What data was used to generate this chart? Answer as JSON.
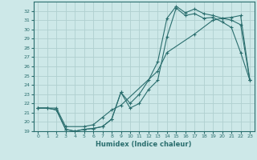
{
  "xlabel": "Humidex (Indice chaleur)",
  "xlim": [
    -0.5,
    23.5
  ],
  "ylim": [
    19,
    33
  ],
  "yticks": [
    19,
    20,
    21,
    22,
    23,
    24,
    25,
    26,
    27,
    28,
    29,
    30,
    31,
    32
  ],
  "xticks": [
    0,
    1,
    2,
    3,
    4,
    5,
    6,
    7,
    8,
    9,
    10,
    11,
    12,
    13,
    14,
    15,
    16,
    17,
    18,
    19,
    20,
    21,
    22,
    23
  ],
  "background_color": "#cde8e8",
  "grid_color": "#b0d0d0",
  "line_color": "#2a6e6e",
  "line1_x": [
    0,
    1,
    2,
    3,
    4,
    5,
    6,
    7,
    8,
    9,
    10,
    11,
    12,
    13,
    14,
    15,
    16,
    17,
    18,
    19,
    20,
    21,
    22,
    23
  ],
  "line1_y": [
    21.5,
    21.5,
    21.3,
    19.2,
    19.0,
    19.2,
    19.3,
    19.5,
    20.3,
    23.2,
    21.5,
    22.0,
    23.5,
    24.5,
    29.2,
    32.3,
    31.5,
    31.7,
    31.2,
    31.3,
    30.8,
    30.2,
    27.5,
    24.5
  ],
  "line2_x": [
    0,
    1,
    2,
    3,
    4,
    5,
    6,
    7,
    8,
    9,
    10,
    11,
    12,
    13,
    14,
    15,
    16,
    17,
    18,
    19,
    20,
    21,
    22,
    23
  ],
  "line2_y": [
    21.5,
    21.5,
    21.3,
    19.2,
    19.0,
    19.2,
    19.3,
    19.5,
    20.3,
    23.2,
    22.0,
    23.0,
    24.5,
    26.5,
    31.2,
    32.5,
    31.8,
    32.2,
    31.7,
    31.5,
    31.2,
    31.0,
    30.5,
    24.5
  ],
  "line3_x": [
    0,
    2,
    3,
    5,
    6,
    7,
    8,
    9,
    13,
    14,
    17,
    19,
    20,
    21,
    22,
    23
  ],
  "line3_y": [
    21.5,
    21.5,
    19.5,
    19.5,
    19.7,
    20.5,
    21.3,
    21.8,
    25.5,
    27.5,
    29.5,
    31.0,
    31.2,
    31.3,
    31.5,
    24.5
  ]
}
